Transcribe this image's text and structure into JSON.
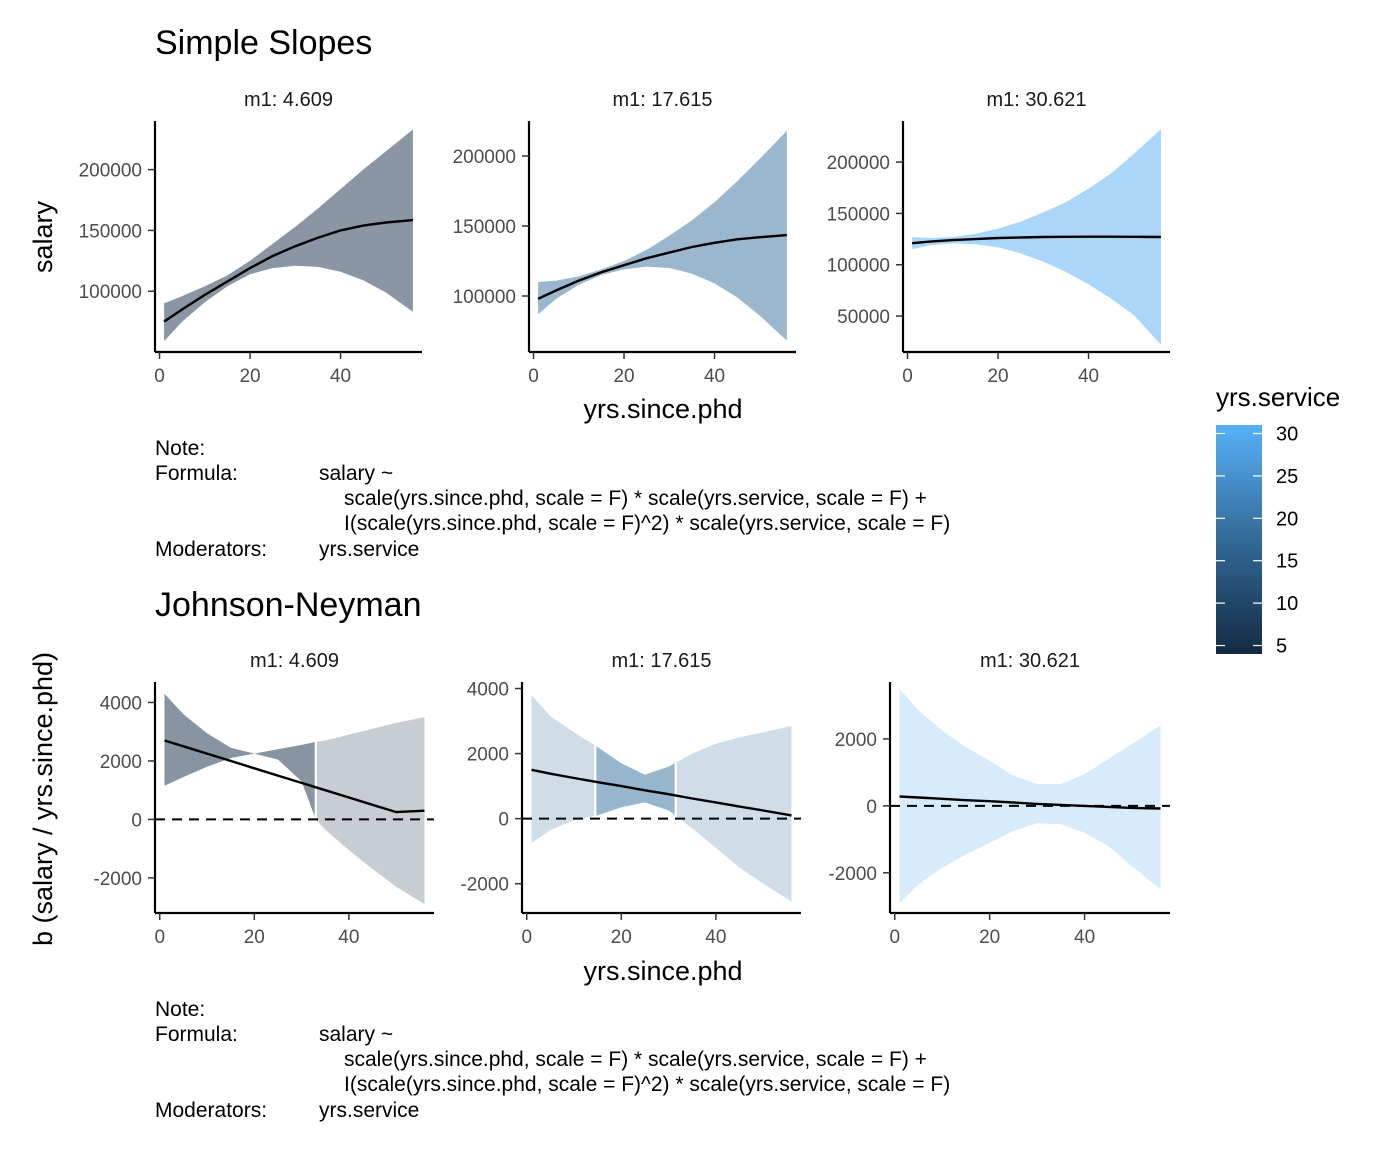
{
  "colors": {
    "m1_low": "#132B43",
    "m1_mid": "#336A98",
    "m1_high": "#56B1F7",
    "line": "#000000",
    "axis": "#000000"
  },
  "legend": {
    "title": "yrs.service",
    "ticks": [
      "30",
      "25",
      "20",
      "15",
      "10",
      "5"
    ],
    "range": [
      4,
      31
    ]
  },
  "note": {
    "label": "Note:",
    "formula_label": "Formula:",
    "formula_lines": [
      "salary ~",
      "scale(yrs.since.phd, scale = F) * scale(yrs.service, scale = F) +",
      "I(scale(yrs.since.phd, scale = F)^2) * scale(yrs.service, scale = F)"
    ],
    "moderators_label": "Moderators:",
    "moderators_value": "yrs.service"
  },
  "chart_data": [
    {
      "type": "line",
      "title": "Simple Slopes",
      "xlabel": "yrs.since.phd",
      "ylabel": "salary",
      "panels": [
        {
          "strip": "m1: 4.609",
          "moderator": 4.609,
          "xlim": [
            -1,
            58
          ],
          "ylim": [
            50000,
            240000
          ],
          "xticks": [
            "0",
            "20",
            "40"
          ],
          "yticks": [
            "100000",
            "150000",
            "200000"
          ],
          "x": [
            1,
            5,
            10,
            15,
            20,
            25,
            30,
            35,
            40,
            45,
            50,
            56
          ],
          "y": [
            75000,
            85000,
            97000,
            108000,
            119000,
            129000,
            137000,
            144000,
            150000,
            154000,
            156500,
            158500
          ],
          "lower": [
            59000,
            75000,
            91000,
            104000,
            114000,
            119000,
            121000,
            120000,
            116000,
            109000,
            99000,
            83000
          ],
          "upper": [
            90000,
            96000,
            104000,
            113000,
            125000,
            139000,
            153000,
            168000,
            184000,
            200000,
            215000,
            233000
          ]
        },
        {
          "strip": "m1: 17.615",
          "moderator": 17.615,
          "xlim": [
            -1,
            58
          ],
          "ylim": [
            60000,
            225000
          ],
          "xticks": [
            "0",
            "20",
            "40"
          ],
          "yticks": [
            "100000",
            "150000",
            "200000"
          ],
          "x": [
            1,
            5,
            10,
            15,
            20,
            25,
            30,
            35,
            40,
            45,
            50,
            56
          ],
          "y": [
            98000,
            104000,
            111000,
            117000,
            122000,
            127000,
            131000,
            135000,
            138000,
            140500,
            142000,
            143500
          ],
          "lower": [
            87000,
            98000,
            108000,
            115000,
            119000,
            121000,
            120000,
            116000,
            109000,
            99000,
            86000,
            68000
          ],
          "upper": [
            110000,
            111000,
            114000,
            119000,
            125000,
            133000,
            143000,
            154000,
            167000,
            182000,
            198000,
            218000
          ]
        },
        {
          "strip": "m1: 30.621",
          "moderator": 30.621,
          "xlim": [
            -1,
            58
          ],
          "ylim": [
            15000,
            240000
          ],
          "xticks": [
            "0",
            "20",
            "40"
          ],
          "yticks": [
            "50000",
            "100000",
            "150000",
            "200000"
          ],
          "x": [
            1,
            5,
            10,
            15,
            20,
            25,
            30,
            35,
            40,
            45,
            50,
            56
          ],
          "y": [
            121000,
            122500,
            124000,
            125000,
            126000,
            126500,
            127000,
            127200,
            127300,
            127300,
            127200,
            127000
          ],
          "lower": [
            115000,
            119000,
            121000,
            120000,
            117000,
            111000,
            103000,
            93000,
            81000,
            67000,
            51000,
            22000
          ],
          "upper": [
            127000,
            126000,
            127000,
            130000,
            135000,
            142000,
            151000,
            161000,
            174000,
            189000,
            208000,
            232000
          ]
        }
      ]
    },
    {
      "type": "line",
      "title": "Johnson-Neyman",
      "xlabel": "yrs.since.phd",
      "ylabel": "b (salary / yrs.since.phd)",
      "panels": [
        {
          "strip": "m1: 4.609",
          "moderator": 4.609,
          "xlim": [
            -1,
            58
          ],
          "ylim": [
            -3200,
            4700
          ],
          "xticks": [
            "0",
            "20",
            "40"
          ],
          "yticks": [
            "-2000",
            "0",
            "2000",
            "4000"
          ],
          "x": [
            1,
            5,
            10,
            15,
            20,
            25,
            30,
            33,
            35,
            40,
            45,
            50,
            56
          ],
          "y": [
            2700,
            2500,
            2250,
            2000,
            1750,
            1500,
            1250,
            1100,
            1000,
            750,
            500,
            250,
            300
          ],
          "lower": [
            1150,
            1450,
            1800,
            2100,
            2250,
            2050,
            1300,
            0,
            -350,
            -1050,
            -1700,
            -2300,
            -2900
          ],
          "upper": [
            4300,
            3600,
            2950,
            2450,
            2250,
            2400,
            2550,
            2650,
            2700,
            2900,
            3100,
            3300,
            3500
          ],
          "significant_range": [
            1,
            33
          ]
        },
        {
          "strip": "m1: 17.615",
          "moderator": 17.615,
          "xlim": [
            -1,
            58
          ],
          "ylim": [
            -2900,
            4200
          ],
          "xticks": [
            "0",
            "20",
            "40"
          ],
          "yticks": [
            "-2000",
            "0",
            "2000",
            "4000"
          ],
          "x": [
            1,
            5,
            10,
            15,
            20,
            25,
            30,
            35,
            40,
            45,
            50,
            56
          ],
          "y": [
            1500,
            1380,
            1250,
            1120,
            1000,
            870,
            750,
            620,
            500,
            370,
            250,
            100
          ],
          "lower": [
            -750,
            -350,
            -50,
            100,
            350,
            500,
            250,
            -300,
            -900,
            -1500,
            -2000,
            -2550
          ],
          "upper": [
            3800,
            3150,
            2650,
            2200,
            1700,
            1350,
            1600,
            2000,
            2300,
            2500,
            2650,
            2850
          ],
          "significant_range": [
            14.5,
            31.5
          ]
        },
        {
          "strip": "m1: 30.621",
          "moderator": 30.621,
          "xlim": [
            -1,
            58
          ],
          "ylim": [
            -3200,
            3700
          ],
          "xticks": [
            "0",
            "20",
            "40"
          ],
          "yticks": [
            "-2000",
            "0",
            "2000"
          ],
          "x": [
            1,
            5,
            10,
            15,
            20,
            25,
            30,
            35,
            40,
            45,
            50,
            56
          ],
          "y": [
            280,
            250,
            210,
            170,
            140,
            100,
            60,
            30,
            0,
            -30,
            -60,
            -80
          ],
          "lower": [
            -2900,
            -2350,
            -1850,
            -1450,
            -1100,
            -750,
            -520,
            -550,
            -800,
            -1200,
            -1800,
            -2500
          ],
          "upper": [
            3500,
            2850,
            2250,
            1750,
            1350,
            900,
            650,
            650,
            950,
            1400,
            1850,
            2400
          ],
          "significant_range": null
        }
      ]
    }
  ]
}
